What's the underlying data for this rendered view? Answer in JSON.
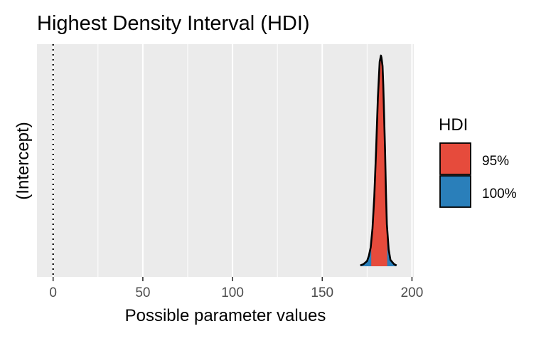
{
  "chart_data": {
    "type": "area",
    "title": "Highest Density Interval (HDI)",
    "xlabel": "Possible parameter values",
    "ylabel": "(Intercept)",
    "xlim": [
      -9,
      201
    ],
    "x_ticks": [
      0,
      50,
      100,
      150,
      200
    ],
    "x_tick_labels": [
      "0",
      "50",
      "100",
      "150",
      "200"
    ],
    "reference_line_x": 0,
    "grid": true,
    "legend": {
      "title": "HDI",
      "position": "right",
      "entries": [
        {
          "label": "95%",
          "color": "#E64B3C"
        },
        {
          "label": "100%",
          "color": "#2A7FBA"
        }
      ]
    },
    "series": [
      {
        "name": "(Intercept)",
        "hdi_95": [
          177.3,
          186.2
        ],
        "hdi_100": [
          171.2,
          191.4
        ],
        "x": [
          171.2,
          173,
          175,
          176,
          177,
          178,
          179,
          180,
          181,
          182,
          182.7,
          183,
          183.6,
          184,
          185,
          185.5,
          186,
          187,
          188,
          190,
          191.4
        ],
        "density": [
          0.004,
          0.01,
          0.025,
          0.05,
          0.09,
          0.18,
          0.33,
          0.55,
          0.8,
          0.97,
          1.0,
          0.99,
          0.95,
          0.86,
          0.55,
          0.35,
          0.2,
          0.08,
          0.03,
          0.01,
          0.004
        ]
      }
    ]
  }
}
